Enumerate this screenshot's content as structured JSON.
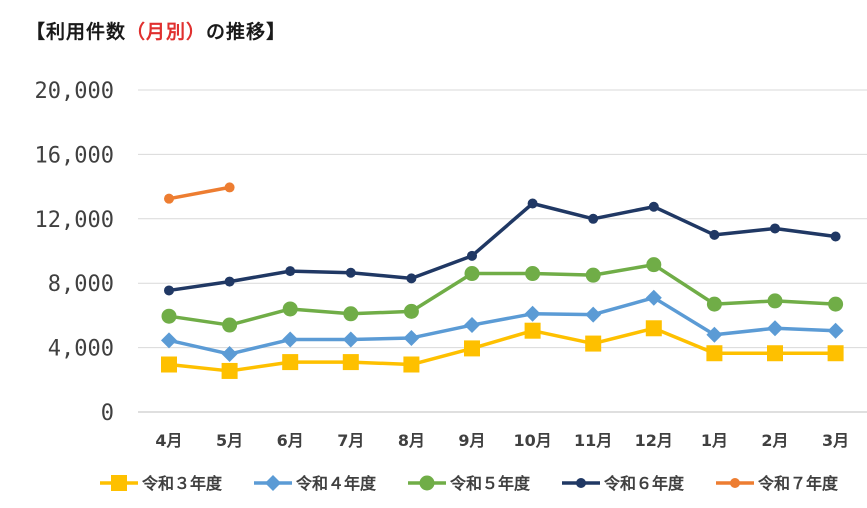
{
  "title": {
    "bracket_open": "【",
    "part1": "利用件数",
    "highlight": "（月別）",
    "part2": "の推移",
    "bracket_close": "】"
  },
  "colors": {
    "reiwa3": "#fec000",
    "reiwa4": "#5b9bd5",
    "reiwa5": "#70ad47",
    "reiwa6": "#203864",
    "reiwa7": "#ed7d31",
    "title_accent": "#e0302f"
  },
  "chart_data": {
    "type": "line",
    "title": "【利用件数（月別）の推移】",
    "xlabel": "",
    "ylabel": "",
    "ylim": [
      0,
      20000
    ],
    "yticks": [
      0,
      4000,
      8000,
      12000,
      16000,
      20000
    ],
    "ytick_labels": [
      "0",
      "4,000",
      "8,000",
      "12,000",
      "16,000",
      "20,000"
    ],
    "categories": [
      "4月",
      "5月",
      "6月",
      "7月",
      "8月",
      "9月",
      "10月",
      "11月",
      "12月",
      "1月",
      "2月",
      "3月"
    ],
    "grid": true,
    "legend_position": "bottom",
    "series": [
      {
        "name": "令和３年度",
        "color_key": "reiwa3",
        "marker": "square",
        "values": [
          2950,
          2550,
          3100,
          3100,
          2950,
          3950,
          5050,
          4250,
          5200,
          3650,
          3650,
          3650
        ]
      },
      {
        "name": "令和４年度",
        "color_key": "reiwa4",
        "marker": "diamond",
        "values": [
          4450,
          3600,
          4500,
          4500,
          4600,
          5400,
          6100,
          6050,
          7100,
          4800,
          5200,
          5050
        ]
      },
      {
        "name": "令和５年度",
        "color_key": "reiwa5",
        "marker": "circle",
        "values": [
          5950,
          5400,
          6400,
          6100,
          6250,
          8600,
          8600,
          8500,
          9150,
          6700,
          6900,
          6700
        ]
      },
      {
        "name": "令和６年度",
        "color_key": "reiwa6",
        "marker": "dot",
        "values": [
          7550,
          8100,
          8750,
          8650,
          8300,
          9700,
          12950,
          12000,
          12750,
          11000,
          11400,
          10900
        ]
      },
      {
        "name": "令和７年度",
        "color_key": "reiwa7",
        "marker": "dot",
        "values": [
          13250,
          13950,
          null,
          null,
          null,
          null,
          null,
          null,
          null,
          null,
          null,
          null
        ]
      }
    ]
  }
}
